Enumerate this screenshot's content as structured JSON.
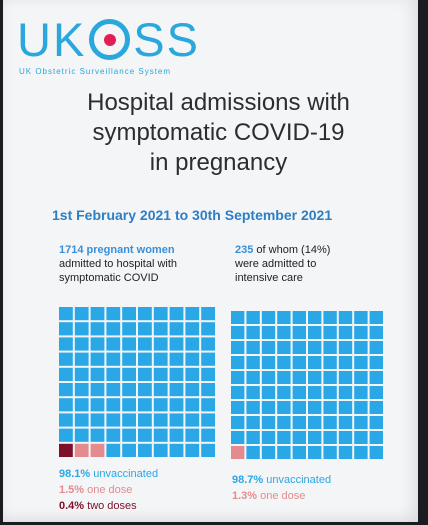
{
  "logo": {
    "text_left": "UK",
    "text_right": "SS",
    "subtitle": "UK Obstetric Surveillance System",
    "ring_color": "#2aa7db",
    "dot_color": "#e41d57"
  },
  "title_lines": [
    "Hospital admissions with",
    "symptomatic COVID-19",
    "in pregnancy"
  ],
  "date_range": "1st February 2021 to 30th September 2021",
  "colors": {
    "unvaccinated": "#2aa7e6",
    "one_dose": "#e48b8f",
    "two_doses": "#7d1028",
    "text_blue": "#3a8fd6"
  },
  "chart_data": [
    {
      "type": "waffle",
      "highlight": "1714 pregnant women",
      "description_lines": [
        "admitted to hospital with",
        "symptomatic COVID"
      ],
      "grid": [
        10,
        10
      ],
      "series": [
        {
          "name": "unvaccinated",
          "label": "98.1%",
          "suffix": " unvaccinated",
          "value": 98.1,
          "color_key": "unvaccinated"
        },
        {
          "name": "one dose",
          "label": "1.5%",
          "suffix": " one dose",
          "value": 1.5,
          "color_key": "one_dose"
        },
        {
          "name": "two doses",
          "label": "0.4%",
          "suffix": " two doses",
          "value": 0.4,
          "color_key": "two_doses"
        }
      ]
    },
    {
      "type": "waffle",
      "highlight": "235",
      "description_lines": [
        "of whom (14%)",
        "were admitted to",
        "intensive care"
      ],
      "grid": [
        10,
        10
      ],
      "series": [
        {
          "name": "unvaccinated",
          "label": "98.7%",
          "suffix": " unvaccinated",
          "value": 98.7,
          "color_key": "unvaccinated"
        },
        {
          "name": "one dose",
          "label": "1.3%",
          "suffix": " one dose",
          "value": 1.3,
          "color_key": "one_dose"
        }
      ]
    }
  ]
}
